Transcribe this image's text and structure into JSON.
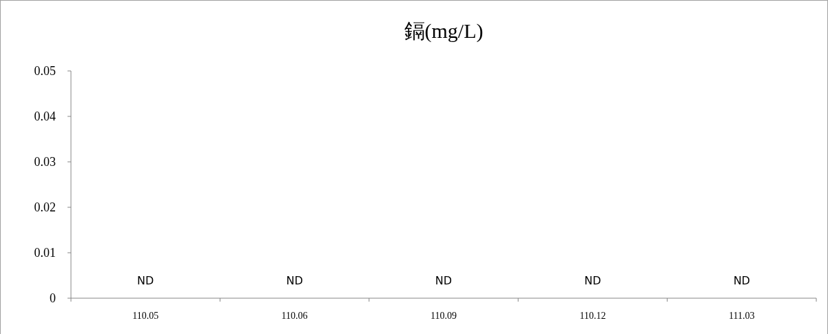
{
  "chart_data": {
    "type": "bar",
    "title": "鎘(mg/L)",
    "categories": [
      "110.05",
      "110.06",
      "110.09",
      "110.12",
      "111.03"
    ],
    "values": [
      null,
      null,
      null,
      null,
      null
    ],
    "value_labels": [
      "ND",
      "ND",
      "ND",
      "ND",
      "ND"
    ],
    "grid": false,
    "ylim": [
      0,
      0.05
    ],
    "yticks": [
      0,
      0.01,
      0.02,
      0.03,
      0.04,
      0.05
    ]
  }
}
